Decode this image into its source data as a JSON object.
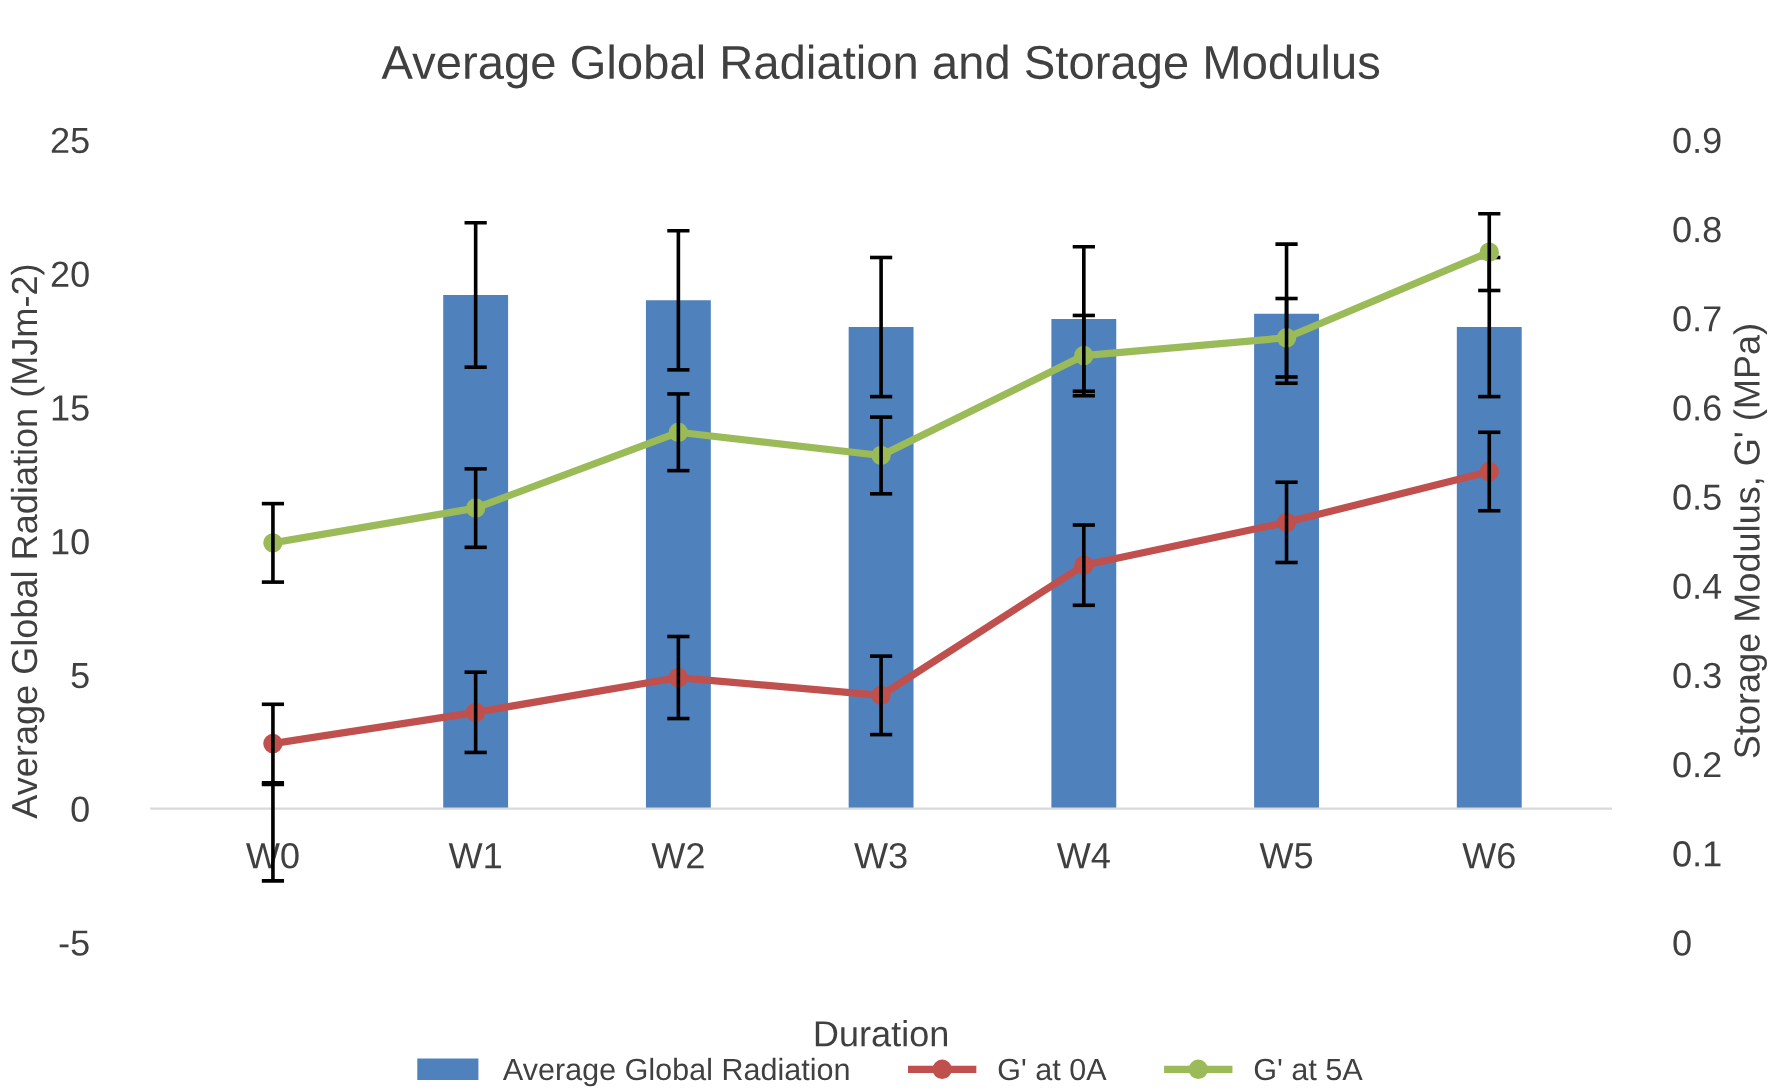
{
  "chart_data": {
    "type": "bar",
    "title": "Average Global Radiation and Storage Modulus",
    "xlabel": "Duration",
    "ylabel": "Average Global Radiation (MJm-2)",
    "y2label": "Storage Modulus, G' (MPa)",
    "categories": [
      "W0",
      "W1",
      "W2",
      "W3",
      "W4",
      "W5",
      "W6"
    ],
    "series": [
      {
        "name": "Average Global Radiation",
        "color": "#4f81bd",
        "values": [
          0,
          19.2,
          19.0,
          18.0,
          18.3,
          18.5,
          18.0
        ],
        "errors": [
          [
            -2.7,
            0.9
          ],
          2.7,
          2.6,
          2.6,
          2.7,
          2.6,
          2.6
        ]
      },
      {
        "name": "G' at 0A",
        "type": "line",
        "axis": "y2",
        "color": "#c0504d",
        "values": [
          0.223,
          0.258,
          0.297,
          0.277,
          0.423,
          0.471,
          0.528
        ],
        "errors": [
          0.044,
          0.045,
          0.046,
          0.044,
          0.045,
          0.045,
          0.044
        ]
      },
      {
        "name": "G' at 5A",
        "type": "line",
        "axis": "y2",
        "color": "#9bbb59",
        "values": [
          0.448,
          0.487,
          0.572,
          0.546,
          0.658,
          0.678,
          0.774
        ],
        "errors": [
          0.044,
          0.044,
          0.043,
          0.043,
          0.045,
          0.044,
          0.043
        ]
      }
    ],
    "ylim": [
      -5,
      25
    ],
    "yticks": [
      -5,
      0,
      5,
      10,
      15,
      20,
      25
    ],
    "y2lim": [
      0,
      0.9
    ],
    "y2ticks": [
      0,
      0.1,
      0.2,
      0.3,
      0.4,
      0.5,
      0.6,
      0.7,
      0.8,
      0.9
    ],
    "marker": "circle",
    "line_style": "solid",
    "grid": false,
    "legend": "bottom"
  }
}
